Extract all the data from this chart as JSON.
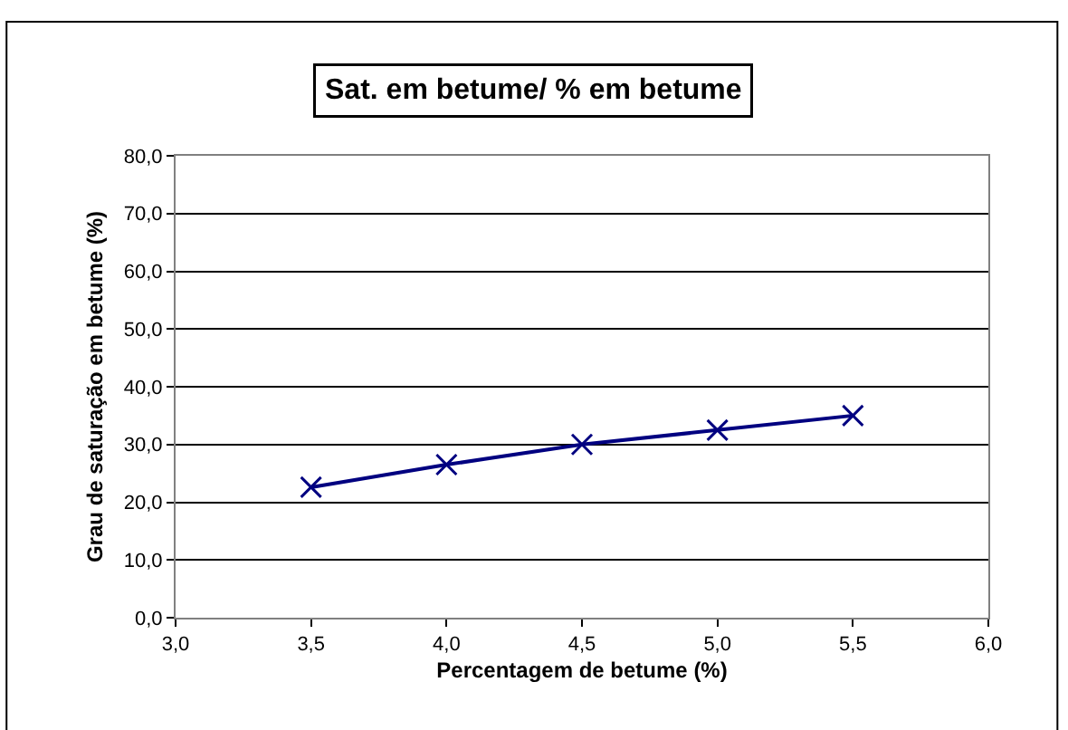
{
  "chart_data": {
    "type": "line",
    "title": "Sat. em betume/ % em betume",
    "xlabel": "Percentagem de betume (%)",
    "ylabel": "Grau de saturação em betume (%)",
    "x": [
      3.5,
      4.0,
      4.5,
      5.0,
      5.5
    ],
    "series": [
      {
        "color": "#000080",
        "values": [
          22.6,
          26.5,
          30.0,
          32.5,
          35.0
        ]
      }
    ],
    "xlim": [
      3,
      6
    ],
    "xticks": [
      {
        "value": 3,
        "label": "3,0"
      },
      {
        "value": 3.5,
        "label": "3,5"
      },
      {
        "value": 4,
        "label": "4,0"
      },
      {
        "value": 4.5,
        "label": "4,5"
      },
      {
        "value": 5,
        "label": "5,0"
      },
      {
        "value": 5.5,
        "label": "5,5"
      },
      {
        "value": 6,
        "label": "6,0"
      }
    ],
    "ylim": [
      0,
      80
    ],
    "yticks": [
      {
        "value": 0,
        "label": "0,0"
      },
      {
        "value": 10,
        "label": "10,0"
      },
      {
        "value": 20,
        "label": "20,0"
      },
      {
        "value": 30,
        "label": "30,0"
      },
      {
        "value": 40,
        "label": "40,0"
      },
      {
        "value": 50,
        "label": "50,0"
      },
      {
        "value": 60,
        "label": "60,0"
      },
      {
        "value": 70,
        "label": "70,0"
      },
      {
        "value": 80,
        "label": "80,0"
      }
    ],
    "grid": "y",
    "legend": false,
    "marker": "cross",
    "line_style": "solid"
  }
}
